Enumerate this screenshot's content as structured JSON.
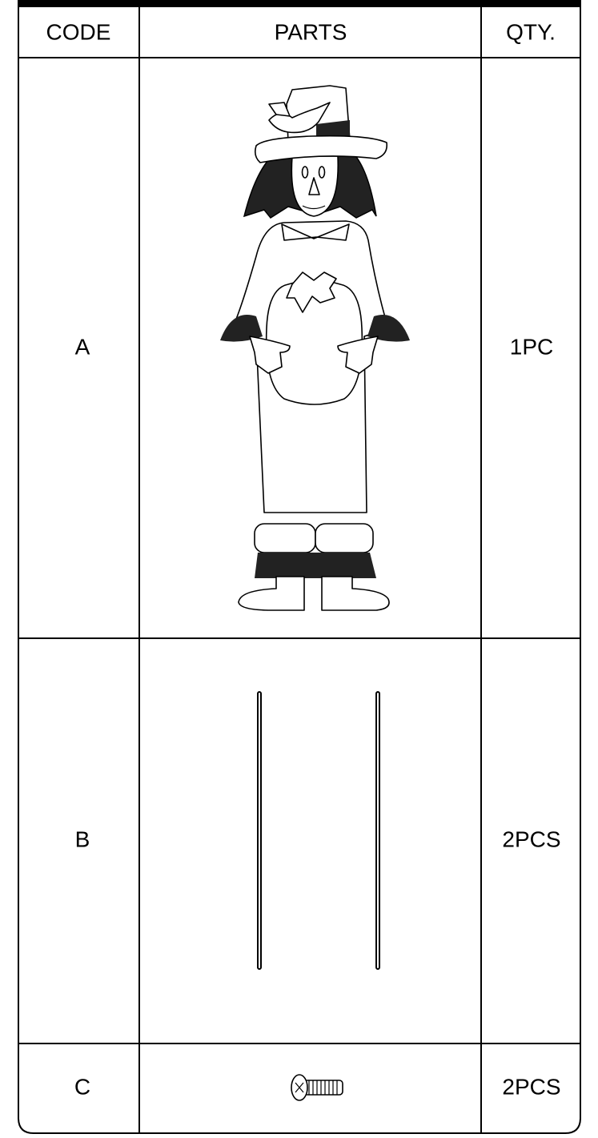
{
  "table": {
    "header": [
      "CODE",
      "PARTS",
      "QTY."
    ],
    "rows": [
      [
        "A",
        "1PC"
      ],
      [
        "B",
        "2PCS"
      ],
      [
        "C",
        "2PCS"
      ]
    ]
  }
}
